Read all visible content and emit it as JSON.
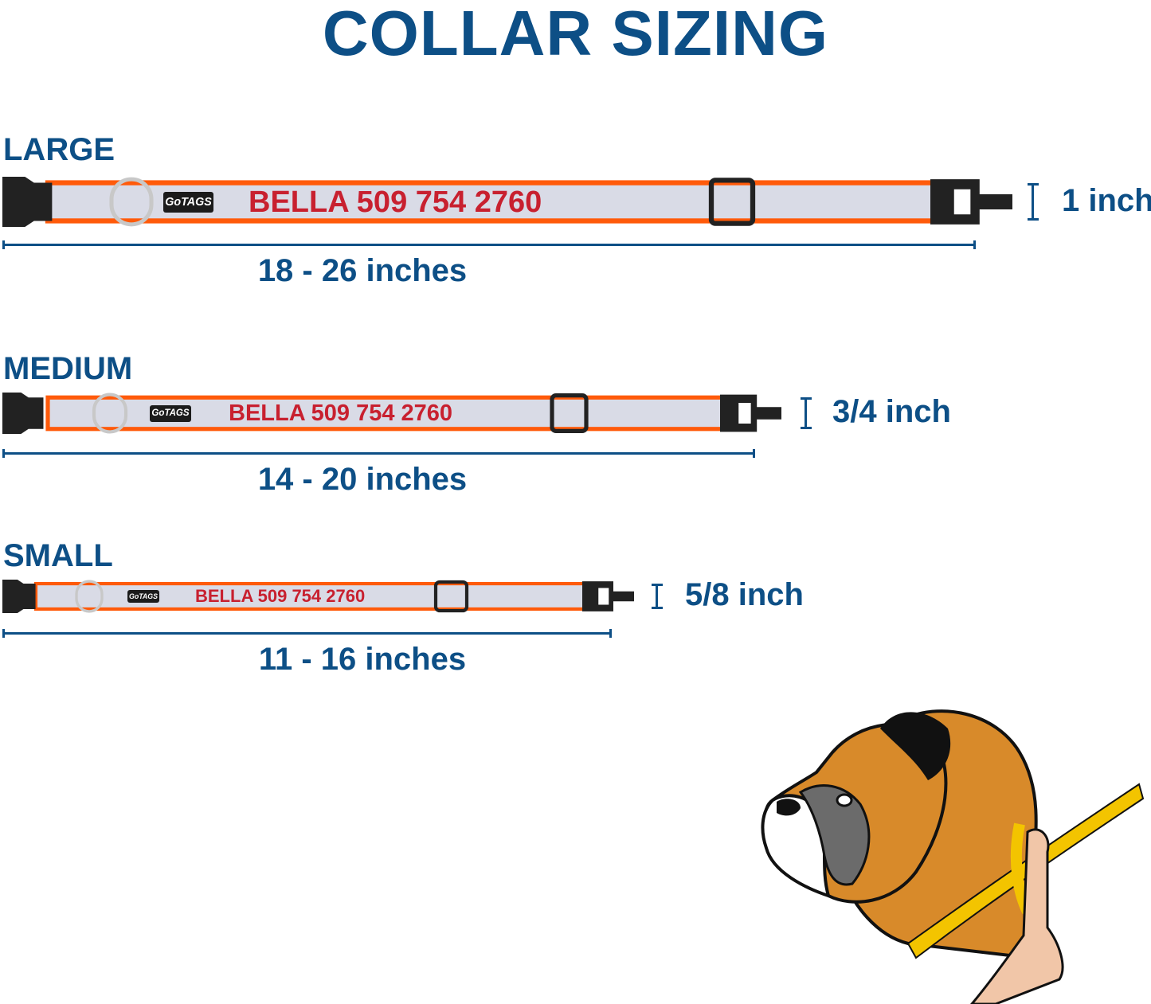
{
  "title": "COLLAR SIZING",
  "sizes": [
    {
      "name": "LARGE",
      "range": "18 - 26 inches",
      "width": "1 inch",
      "engraving": "BELLA 509 754 2760",
      "logo": "GoTAGS"
    },
    {
      "name": "MEDIUM",
      "range": "14 - 20 inches",
      "width": "3/4 inch",
      "engraving": "BELLA 509 754 2760",
      "logo": "GoTAGS"
    },
    {
      "name": "SMALL",
      "range": "11 - 16 inches",
      "width": "5/8 inch",
      "engraving": "BELLA 509 754 2760",
      "logo": "GoTAGS"
    }
  ],
  "colors": {
    "heading": "#0d4f86",
    "collar_border": "#ff5a0a",
    "collar_band": "#d9dbe6",
    "engraving": "#c8202f",
    "buckle": "#222222"
  }
}
